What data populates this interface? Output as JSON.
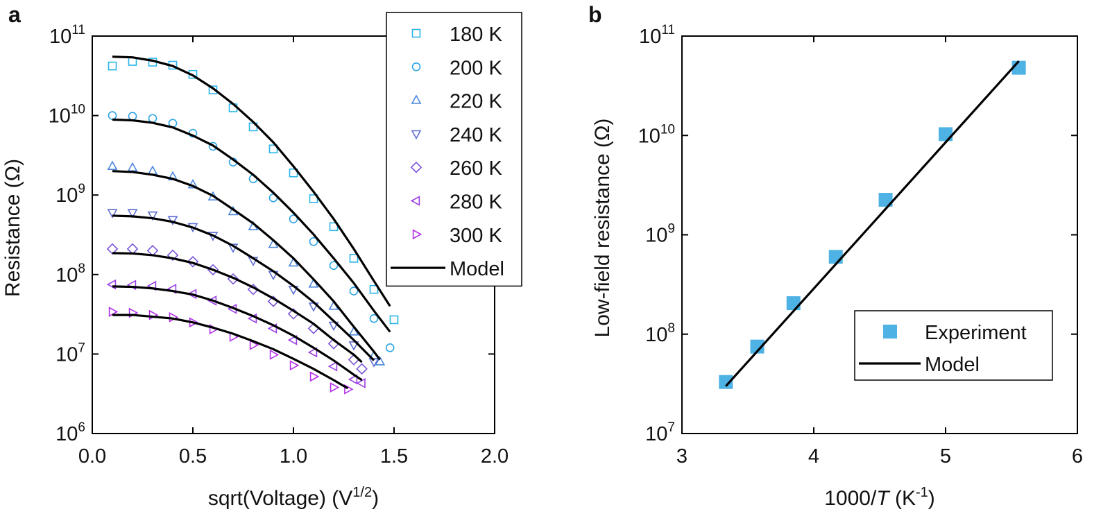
{
  "chart_data": [
    {
      "type": "scatter",
      "panel_label": "a",
      "xlabel": {
        "text": "sqrt(Voltage) (V",
        "sup": "1/2",
        "end": ")"
      },
      "ylabel": "Resistance (Ω)",
      "xlim": [
        0,
        2
      ],
      "xticks": [
        {
          "value": 0,
          "label": "0.0"
        },
        {
          "value": 0.5,
          "label": "0.5"
        },
        {
          "value": 1,
          "label": "1.0"
        },
        {
          "value": 1.5,
          "label": "1.5"
        },
        {
          "value": 2,
          "label": "2.0"
        }
      ],
      "ylim": [
        1000000.0,
        100000000000.0
      ],
      "yticks": [
        {
          "value": 1000000.0,
          "label": "10",
          "exp": "6"
        },
        {
          "value": 10000000.0,
          "label": "10",
          "exp": "7"
        },
        {
          "value": 100000000.0,
          "label": "10",
          "exp": "8"
        },
        {
          "value": 1000000000.0,
          "label": "10",
          "exp": "9"
        },
        {
          "value": 10000000000.0,
          "label": "10",
          "exp": "10"
        },
        {
          "value": 100000000000.0,
          "label": "10",
          "exp": "11"
        }
      ],
      "log_y": true,
      "legend": "top-right",
      "series": [
        {
          "name": "180 K",
          "color": "#29b5ea",
          "marker": "square",
          "x": [
            0.1,
            0.2,
            0.3,
            0.4,
            0.5,
            0.6,
            0.7,
            0.8,
            0.9,
            1.0,
            1.1,
            1.2,
            1.3,
            1.4,
            1.5
          ],
          "values": [
            42000000000.0,
            48000000000.0,
            47000000000.0,
            43000000000.0,
            33000000000.0,
            21000000000.0,
            12500000000.0,
            7200000000.0,
            3800000000.0,
            1900000000.0,
            900000000.0,
            400000000.0,
            160000000.0,
            65000000.0,
            27000000.0
          ]
        },
        {
          "name": "200 K",
          "color": "#2ca3e6",
          "marker": "circle",
          "x": [
            0.1,
            0.2,
            0.3,
            0.4,
            0.5,
            0.6,
            0.7,
            0.8,
            0.9,
            1.0,
            1.1,
            1.2,
            1.3,
            1.4,
            1.48
          ],
          "values": [
            10000000000.0,
            9800000000.0,
            9200000000.0,
            8000000000.0,
            6000000000.0,
            4100000000.0,
            2600000000.0,
            1600000000.0,
            920000000.0,
            500000000.0,
            260000000.0,
            130000000.0,
            62000000.0,
            28000000.0,
            12000000.0
          ]
        },
        {
          "name": "220 K",
          "color": "#4a86dc",
          "marker": "triangle-up",
          "x": [
            0.1,
            0.2,
            0.3,
            0.4,
            0.5,
            0.6,
            0.7,
            0.8,
            0.9,
            1.0,
            1.1,
            1.2,
            1.3,
            1.4,
            1.43
          ],
          "values": [
            2300000000.0,
            2200000000.0,
            2000000000.0,
            1700000000.0,
            1350000000.0,
            950000000.0,
            620000000.0,
            400000000.0,
            240000000.0,
            140000000.0,
            76000000.0,
            40000000.0,
            19000000.0,
            9500000.0,
            8000000.0
          ]
        },
        {
          "name": "240 K",
          "color": "#5c6dd0",
          "marker": "triangle-down",
          "x": [
            0.1,
            0.2,
            0.3,
            0.4,
            0.5,
            0.6,
            0.7,
            0.8,
            0.9,
            1.0,
            1.1,
            1.2,
            1.3,
            1.4
          ],
          "values": [
            600000000.0,
            600000000.0,
            560000000.0,
            490000000.0,
            400000000.0,
            310000000.0,
            220000000.0,
            150000000.0,
            100000000.0,
            65000000.0,
            40000000.0,
            23000000.0,
            13000000.0,
            8000000.0
          ]
        },
        {
          "name": "260 K",
          "color": "#7a55d6",
          "marker": "diamond",
          "x": [
            0.1,
            0.2,
            0.3,
            0.4,
            0.5,
            0.6,
            0.7,
            0.8,
            0.9,
            1.0,
            1.1,
            1.2,
            1.3,
            1.34
          ],
          "values": [
            210000000.0,
            210000000.0,
            200000000.0,
            175000000.0,
            145000000.0,
            115000000.0,
            88000000.0,
            65000000.0,
            46000000.0,
            32000000.0,
            21000000.0,
            13500000.0,
            8500000.0,
            6500000.0
          ]
        },
        {
          "name": "280 K",
          "color": "#9a3de2",
          "marker": "triangle-left",
          "x": [
            0.1,
            0.2,
            0.3,
            0.4,
            0.5,
            0.6,
            0.7,
            0.8,
            0.9,
            1.0,
            1.1,
            1.2,
            1.3,
            1.34
          ],
          "values": [
            75000000.0,
            74000000.0,
            72000000.0,
            66000000.0,
            57000000.0,
            47000000.0,
            37000000.0,
            28000000.0,
            21000000.0,
            15000000.0,
            10500000.0,
            7000000.0,
            4800000.0,
            4300000.0
          ]
        },
        {
          "name": "300 K",
          "color": "#b22fe8",
          "marker": "triangle-right",
          "x": [
            0.1,
            0.2,
            0.3,
            0.4,
            0.5,
            0.6,
            0.7,
            0.8,
            0.9,
            1.0,
            1.1,
            1.2,
            1.27
          ],
          "values": [
            34000000.0,
            33000000.0,
            31000000.0,
            29000000.0,
            25000000.0,
            20500000.0,
            16500000.0,
            13000000.0,
            9800000.0,
            7200000.0,
            5200000.0,
            3800000.0,
            3600000.0
          ]
        }
      ],
      "model": {
        "name": "Model",
        "color": "#000000",
        "lines": [
          {
            "x": [
              0.1,
              0.2,
              0.3,
              0.4,
              0.5,
              0.6,
              0.7,
              0.8,
              0.9,
              1.0,
              1.1,
              1.2,
              1.3,
              1.4,
              1.48
            ],
            "values": [
              55000000000.0,
              54000000000.0,
              49000000000.0,
              42000000000.0,
              32000000000.0,
              22000000000.0,
              14000000000.0,
              8300000000.0,
              4600000000.0,
              2300000000.0,
              1100000000.0,
              500000000.0,
              210000000.0,
              83000000.0,
              40000000.0
            ]
          },
          {
            "x": [
              0.1,
              0.2,
              0.3,
              0.4,
              0.5,
              0.6,
              0.7,
              0.8,
              0.9,
              1.0,
              1.1,
              1.2,
              1.3,
              1.4,
              1.48
            ],
            "values": [
              8900000000.0,
              8700000000.0,
              8100000000.0,
              7100000000.0,
              5600000000.0,
              4200000000.0,
              2800000000.0,
              1800000000.0,
              1070000000.0,
              600000000.0,
              320000000.0,
              160000000.0,
              78000000.0,
              35000000.0,
              19000000.0
            ]
          },
          {
            "x": [
              0.1,
              0.2,
              0.3,
              0.4,
              0.5,
              0.6,
              0.7,
              0.8,
              0.9,
              1.0,
              1.1,
              1.2,
              1.3,
              1.4,
              1.43
            ],
            "values": [
              2000000000.0,
              1950000000.0,
              1800000000.0,
              1600000000.0,
              1300000000.0,
              980000000.0,
              660000000.0,
              440000000.0,
              270000000.0,
              160000000.0,
              87000000.0,
              46000000.0,
              22000000.0,
              10700000.0,
              8500000.0
            ]
          },
          {
            "x": [
              0.1,
              0.2,
              0.3,
              0.4,
              0.5,
              0.6,
              0.7,
              0.8,
              0.9,
              1.0,
              1.1,
              1.2,
              1.3,
              1.4
            ],
            "values": [
              550000000.0,
              540000000.0,
              510000000.0,
              460000000.0,
              390000000.0,
              310000000.0,
              230000000.0,
              160000000.0,
              110000000.0,
              72000000.0,
              45000000.0,
              26000000.0,
              15000000.0,
              8300000.0
            ]
          },
          {
            "x": [
              0.1,
              0.2,
              0.3,
              0.4,
              0.5,
              0.6,
              0.7,
              0.8,
              0.9,
              1.0,
              1.1,
              1.2,
              1.3,
              1.34
            ],
            "values": [
              186000000.0,
              184000000.0,
              175000000.0,
              160000000.0,
              140000000.0,
              115000000.0,
              91000000.0,
              69000000.0,
              50000000.0,
              35000000.0,
              24000000.0,
              15000000.0,
              9800000.0,
              7900000.0
            ]
          },
          {
            "x": [
              0.1,
              0.2,
              0.3,
              0.4,
              0.5,
              0.6,
              0.7,
              0.8,
              0.9,
              1.0,
              1.1,
              1.2,
              1.3,
              1.34
            ],
            "values": [
              71000000.0,
              70000000.0,
              67000000.0,
              62000000.0,
              56000000.0,
              47000000.0,
              38000000.0,
              30000000.0,
              23000000.0,
              17000000.0,
              12000000.0,
              8300000.0,
              5500000.0,
              4700000.0
            ]
          },
          {
            "x": [
              0.1,
              0.2,
              0.3,
              0.4,
              0.5,
              0.6,
              0.7,
              0.8,
              0.9,
              1.0,
              1.1,
              1.2,
              1.27
            ],
            "values": [
              31000000.0,
              31000000.0,
              29500000.0,
              28000000.0,
              25000000.0,
              21500000.0,
              18000000.0,
              14500000.0,
              11500000.0,
              8700000.0,
              6500000.0,
              4700000.0,
              3700000.0
            ]
          }
        ]
      }
    },
    {
      "type": "scatter",
      "panel_label": "b",
      "xlabel": {
        "text": "1000/",
        "italic": "T",
        "mid": " (K",
        "sup": "-1",
        "end": ")"
      },
      "ylabel": "Low-field resistance (Ω)",
      "xlim": [
        3,
        6
      ],
      "xticks": [
        3,
        4,
        5,
        6
      ],
      "ylim": [
        10000000.0,
        100000000000.0
      ],
      "yticks": [
        {
          "value": 10000000.0,
          "label": "10",
          "exp": "7"
        },
        {
          "value": 100000000.0,
          "label": "10",
          "exp": "8"
        },
        {
          "value": 1000000000.0,
          "label": "10",
          "exp": "9"
        },
        {
          "value": 10000000000.0,
          "label": "10",
          "exp": "10"
        },
        {
          "value": 100000000000.0,
          "label": "10",
          "exp": "11"
        }
      ],
      "log_y": true,
      "legend": "bottom-right",
      "series": [
        {
          "name": "Experiment",
          "color": "#4fb2e4",
          "marker": "square",
          "filled": true,
          "x": [
            3.333,
            3.571,
            3.846,
            4.167,
            4.545,
            5.0,
            5.556
          ],
          "values": [
            33000000.0,
            75000000.0,
            205000000.0,
            600000000.0,
            2250000000.0,
            10300000000.0,
            48000000000.0
          ]
        }
      ],
      "model": {
        "name": "Model",
        "color": "#000000",
        "lines": [
          {
            "x": [
              3.333,
              5.556
            ],
            "values": [
              30000000.0,
              56000000000.0
            ]
          }
        ]
      }
    }
  ]
}
